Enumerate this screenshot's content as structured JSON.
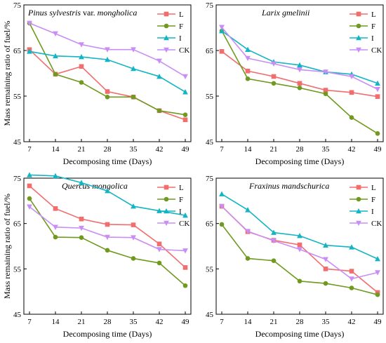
{
  "chart_data": [
    {
      "type": "line",
      "title": "Pinus sylvestris var. mongholica",
      "title_italic": "Pinus sylvestris",
      "title_plain": " var. ",
      "title_italic2": "mongholica",
      "xlabel": "Decomposing time (Days)",
      "ylabel": "Mass remaining ratio of fuel/%",
      "x": [
        7,
        14,
        21,
        28,
        35,
        42,
        49
      ],
      "x_ticks": [
        "7",
        "14",
        "21",
        "28",
        "35",
        "42",
        "49"
      ],
      "ylim": [
        45,
        75
      ],
      "y_ticks": [
        "45",
        "55",
        "65",
        "75"
      ],
      "grid": false,
      "legend_position": "top-right",
      "series": [
        {
          "name": "L",
          "color": "#f26d6d",
          "marker": "square",
          "values": [
            65.2,
            59.8,
            61.5,
            56.0,
            54.8,
            51.8,
            49.8
          ]
        },
        {
          "name": "F",
          "color": "#6f9a1f",
          "marker": "circle",
          "values": [
            71.0,
            59.8,
            58.0,
            54.8,
            54.8,
            51.8,
            50.9
          ]
        },
        {
          "name": "I",
          "color": "#13b5c4",
          "marker": "triangle",
          "values": [
            64.8,
            63.8,
            63.6,
            63.0,
            61.0,
            59.3,
            55.9
          ]
        },
        {
          "name": "CK",
          "color": "#c98ef5",
          "marker": "triangle-down",
          "values": [
            71.0,
            68.7,
            66.3,
            65.2,
            65.2,
            62.7,
            59.3
          ]
        }
      ]
    },
    {
      "type": "line",
      "title": "Larix gmelinii",
      "title_italic": "Larix gmelinii",
      "title_plain": "",
      "title_italic2": "",
      "xlabel": "Decomposing time (Days)",
      "ylabel": "",
      "x": [
        7,
        14,
        21,
        28,
        35,
        42,
        49
      ],
      "x_ticks": [
        "7",
        "14",
        "21",
        "28",
        "35",
        "42",
        "49"
      ],
      "ylim": [
        45,
        75
      ],
      "y_ticks": [
        "45",
        "55",
        "65",
        "75"
      ],
      "grid": false,
      "legend_position": "top-right",
      "series": [
        {
          "name": "L",
          "color": "#f26d6d",
          "marker": "square",
          "values": [
            64.8,
            60.5,
            59.3,
            57.8,
            56.3,
            55.8,
            54.9
          ]
        },
        {
          "name": "F",
          "color": "#6f9a1f",
          "marker": "circle",
          "values": [
            69.3,
            58.8,
            57.8,
            56.8,
            55.5,
            50.3,
            46.8
          ]
        },
        {
          "name": "I",
          "color": "#13b5c4",
          "marker": "triangle",
          "values": [
            69.3,
            65.2,
            62.5,
            61.8,
            60.3,
            59.8,
            57.8
          ]
        },
        {
          "name": "CK",
          "color": "#c98ef5",
          "marker": "triangle-down",
          "values": [
            70.1,
            63.3,
            62.1,
            60.8,
            60.3,
            59.3,
            56.5
          ]
        }
      ]
    },
    {
      "type": "line",
      "title": "Quercus mongolica",
      "title_italic": "Quercus mongolica",
      "title_plain": "",
      "title_italic2": "",
      "xlabel": "Decomposing time (Days)",
      "ylabel": "Mass remaining ratio of fuel/%",
      "x": [
        7,
        14,
        21,
        28,
        35,
        42,
        49
      ],
      "x_ticks": [
        "7",
        "14",
        "21",
        "28",
        "35",
        "42",
        "49"
      ],
      "ylim": [
        45,
        75
      ],
      "y_ticks": [
        "45",
        "55",
        "65",
        "75"
      ],
      "grid": false,
      "legend_position": "top-right",
      "series": [
        {
          "name": "L",
          "color": "#f26d6d",
          "marker": "square",
          "values": [
            73.3,
            68.3,
            66.0,
            64.8,
            64.7,
            60.5,
            55.3
          ]
        },
        {
          "name": "F",
          "color": "#6f9a1f",
          "marker": "circle",
          "values": [
            70.5,
            62.0,
            61.9,
            59.1,
            57.3,
            56.3,
            51.3
          ]
        },
        {
          "name": "I",
          "color": "#13b5c4",
          "marker": "triangle",
          "values": [
            75.7,
            75.5,
            74.0,
            72.2,
            68.8,
            67.8,
            66.8
          ]
        },
        {
          "name": "CK",
          "color": "#c98ef5",
          "marker": "triangle-down",
          "values": [
            68.7,
            64.2,
            64.0,
            62.0,
            61.9,
            59.3,
            59.0
          ]
        }
      ]
    },
    {
      "type": "line",
      "title": "Fraxinus mandschurica",
      "title_italic": "Fraxinus mandschurica",
      "title_plain": "",
      "title_italic2": "",
      "xlabel": "Decomposing time (Days)",
      "ylabel": "",
      "x": [
        7,
        14,
        21,
        28,
        35,
        42,
        49
      ],
      "x_ticks": [
        "7",
        "14",
        "21",
        "28",
        "35",
        "42",
        "49"
      ],
      "ylim": [
        45,
        75
      ],
      "y_ticks": [
        "45",
        "55",
        "65",
        "75"
      ],
      "grid": false,
      "legend_position": "top-right",
      "series": [
        {
          "name": "L",
          "color": "#f26d6d",
          "marker": "square",
          "values": [
            68.8,
            63.2,
            61.3,
            60.3,
            55.0,
            54.5,
            49.8
          ]
        },
        {
          "name": "F",
          "color": "#6f9a1f",
          "marker": "circle",
          "values": [
            64.8,
            57.3,
            56.8,
            52.3,
            51.8,
            50.8,
            49.3
          ]
        },
        {
          "name": "I",
          "color": "#13b5c4",
          "marker": "triangle",
          "values": [
            71.5,
            68.0,
            63.0,
            62.3,
            60.2,
            59.8,
            57.2
          ]
        },
        {
          "name": "CK",
          "color": "#c98ef5",
          "marker": "triangle-down",
          "values": [
            68.8,
            63.3,
            61.2,
            59.3,
            57.1,
            52.8,
            54.2
          ]
        }
      ]
    }
  ]
}
